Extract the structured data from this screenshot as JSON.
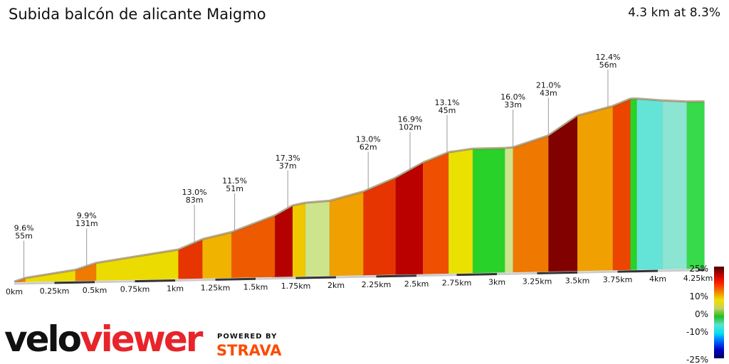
{
  "header": {
    "title": "Subida balcón de alicante Maigmo",
    "summary": "4.3 km at 8.3%"
  },
  "chart_data": {
    "type": "area",
    "title": "Subida balcón de alicante Maigmo",
    "xlabel": "",
    "ylabel": "",
    "xlim": [
      0,
      4.3
    ],
    "x_ticks": [
      "0km",
      "0.25km",
      "0.5km",
      "0.75km",
      "1km",
      "1.25km",
      "1.5km",
      "1.75km",
      "2km",
      "2.25km",
      "2.5km",
      "2.75km",
      "3km",
      "3.25km",
      "3.5km",
      "3.75km",
      "4km",
      "4.25km"
    ],
    "segments": [
      {
        "start_km": 0,
        "end_km": 0.07,
        "gradient": 9.6
      },
      {
        "start_km": 0.07,
        "end_km": 0.38,
        "gradient": 4.5
      },
      {
        "start_km": 0.38,
        "end_km": 0.51,
        "gradient": 9.9
      },
      {
        "start_km": 0.51,
        "end_km": 1.02,
        "gradient": 4.5
      },
      {
        "start_km": 1.02,
        "end_km": 1.17,
        "gradient": 13.0
      },
      {
        "start_km": 1.17,
        "end_km": 1.35,
        "gradient": 7.0
      },
      {
        "start_km": 1.35,
        "end_km": 1.62,
        "gradient": 11.5
      },
      {
        "start_km": 1.62,
        "end_km": 1.73,
        "gradient": 17.3
      },
      {
        "start_km": 1.73,
        "end_km": 1.81,
        "gradient": 6.0
      },
      {
        "start_km": 1.81,
        "end_km": 1.96,
        "gradient": 2.0
      },
      {
        "start_km": 1.96,
        "end_km": 2.17,
        "gradient": 8.0
      },
      {
        "start_km": 2.17,
        "end_km": 2.37,
        "gradient": 13.0
      },
      {
        "start_km": 2.37,
        "end_km": 2.54,
        "gradient": 16.9
      },
      {
        "start_km": 2.54,
        "end_km": 2.7,
        "gradient": 12.0
      },
      {
        "start_km": 2.7,
        "end_km": 2.85,
        "gradient": 4.0
      },
      {
        "start_km": 2.85,
        "end_km": 3.05,
        "gradient": 0.0
      },
      {
        "start_km": 3.05,
        "end_km": 3.1,
        "gradient": 2.0
      },
      {
        "start_km": 3.1,
        "end_km": 3.32,
        "gradient": 10.0
      },
      {
        "start_km": 3.32,
        "end_km": 3.5,
        "gradient": 21.0
      },
      {
        "start_km": 3.5,
        "end_km": 3.72,
        "gradient": 8.0
      },
      {
        "start_km": 3.72,
        "end_km": 3.83,
        "gradient": 12.4
      },
      {
        "start_km": 3.83,
        "end_km": 3.87,
        "gradient": 0.0
      },
      {
        "start_km": 3.87,
        "end_km": 4.03,
        "gradient": -3.0
      },
      {
        "start_km": 4.03,
        "end_km": 4.18,
        "gradient": -2.0
      },
      {
        "start_km": 4.18,
        "end_km": 4.29,
        "gradient": -0.5
      }
    ],
    "annotations": [
      {
        "km": 0.06,
        "gradient": "9.6%",
        "length": "55m"
      },
      {
        "km": 0.45,
        "gradient": "9.9%",
        "length": "131m"
      },
      {
        "km": 1.12,
        "gradient": "13.0%",
        "length": "83m"
      },
      {
        "km": 1.37,
        "gradient": "11.5%",
        "length": "51m"
      },
      {
        "km": 1.7,
        "gradient": "17.3%",
        "length": "37m"
      },
      {
        "km": 2.2,
        "gradient": "13.0%",
        "length": "62m"
      },
      {
        "km": 2.46,
        "gradient": "16.9%",
        "length": "102m"
      },
      {
        "km": 2.69,
        "gradient": "13.1%",
        "length": "45m"
      },
      {
        "km": 3.1,
        "gradient": "16.0%",
        "length": "33m"
      },
      {
        "km": 3.32,
        "gradient": "21.0%",
        "length": "43m"
      },
      {
        "km": 3.69,
        "gradient": "12.4%",
        "length": "56m"
      }
    ],
    "legend": {
      "labels": [
        "25%",
        "10%",
        "0%",
        "-10%",
        "-25%"
      ],
      "placement": "bottom-right",
      "colors": [
        "#4a0000",
        "#c00000",
        "#ff2000",
        "#f08000",
        "#f0e000",
        "#c8d060",
        "#20c020",
        "#60e0d0",
        "#00e0f0",
        "#0060ff",
        "#0000c0",
        "#000060"
      ]
    }
  },
  "branding": {
    "velo": "velo",
    "viewer": "viewer",
    "powered": "POWERED BY",
    "strava": "STRAVA"
  }
}
